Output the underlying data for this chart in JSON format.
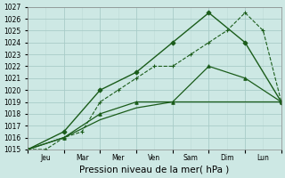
{
  "x_labels": [
    "Jeu",
    "Mar",
    "Mer",
    "Ven",
    "Sam",
    "Dim",
    "Lun"
  ],
  "x_ticks": [
    0.5,
    1.5,
    2.5,
    3.5,
    4.5,
    5.5,
    6.5
  ],
  "x_major_ticks": [
    0,
    1,
    2,
    3,
    4,
    5,
    6,
    7
  ],
  "lines": [
    {
      "name": "dashed_plus",
      "x": [
        0,
        0.5,
        1,
        1.5,
        2,
        2.5,
        3,
        3.5,
        4,
        4.5,
        5,
        5.5,
        6,
        6.5,
        7
      ],
      "y": [
        1015,
        1015,
        1016,
        1016.5,
        1019,
        1020,
        1021,
        1022,
        1022,
        1023,
        1024,
        1025,
        1026.5,
        1025,
        1019
      ],
      "style": "--",
      "marker": "+",
      "markersize": 3,
      "color": "#1a5c1a",
      "linewidth": 0.8
    },
    {
      "name": "solid_diamond",
      "x": [
        0,
        1,
        2,
        3,
        4,
        5,
        6,
        7
      ],
      "y": [
        1015,
        1016.5,
        1020,
        1021.5,
        1024,
        1026.5,
        1024,
        1019
      ],
      "style": "-",
      "marker": "D",
      "markersize": 2.5,
      "color": "#1a5c1a",
      "linewidth": 1.0
    },
    {
      "name": "solid_triangle",
      "x": [
        0,
        1,
        2,
        3,
        4,
        5,
        6,
        7
      ],
      "y": [
        1015,
        1016,
        1018,
        1019,
        1019,
        1022,
        1021,
        1019
      ],
      "style": "-",
      "marker": "^",
      "markersize": 2.5,
      "color": "#1a5c1a",
      "linewidth": 0.9
    },
    {
      "name": "solid_flat",
      "x": [
        0,
        1,
        2,
        3,
        4,
        5,
        6,
        7
      ],
      "y": [
        1015,
        1016,
        1017.5,
        1018.5,
        1019,
        1019,
        1019,
        1019
      ],
      "style": "-",
      "marker": null,
      "markersize": 2,
      "color": "#1a5c1a",
      "linewidth": 0.9
    }
  ],
  "ylim": [
    1015,
    1027
  ],
  "yticks": [
    1015,
    1016,
    1017,
    1018,
    1019,
    1020,
    1021,
    1022,
    1023,
    1024,
    1025,
    1026,
    1027
  ],
  "xlabel": "Pression niveau de la mer( hPa )",
  "background_color": "#cde8e4",
  "grid_major_color": "#a8ccc8",
  "grid_minor_color": "#bddbd7",
  "line_color": "#1a5c1a",
  "tick_label_fontsize": 5.5,
  "xlabel_fontsize": 7.5
}
